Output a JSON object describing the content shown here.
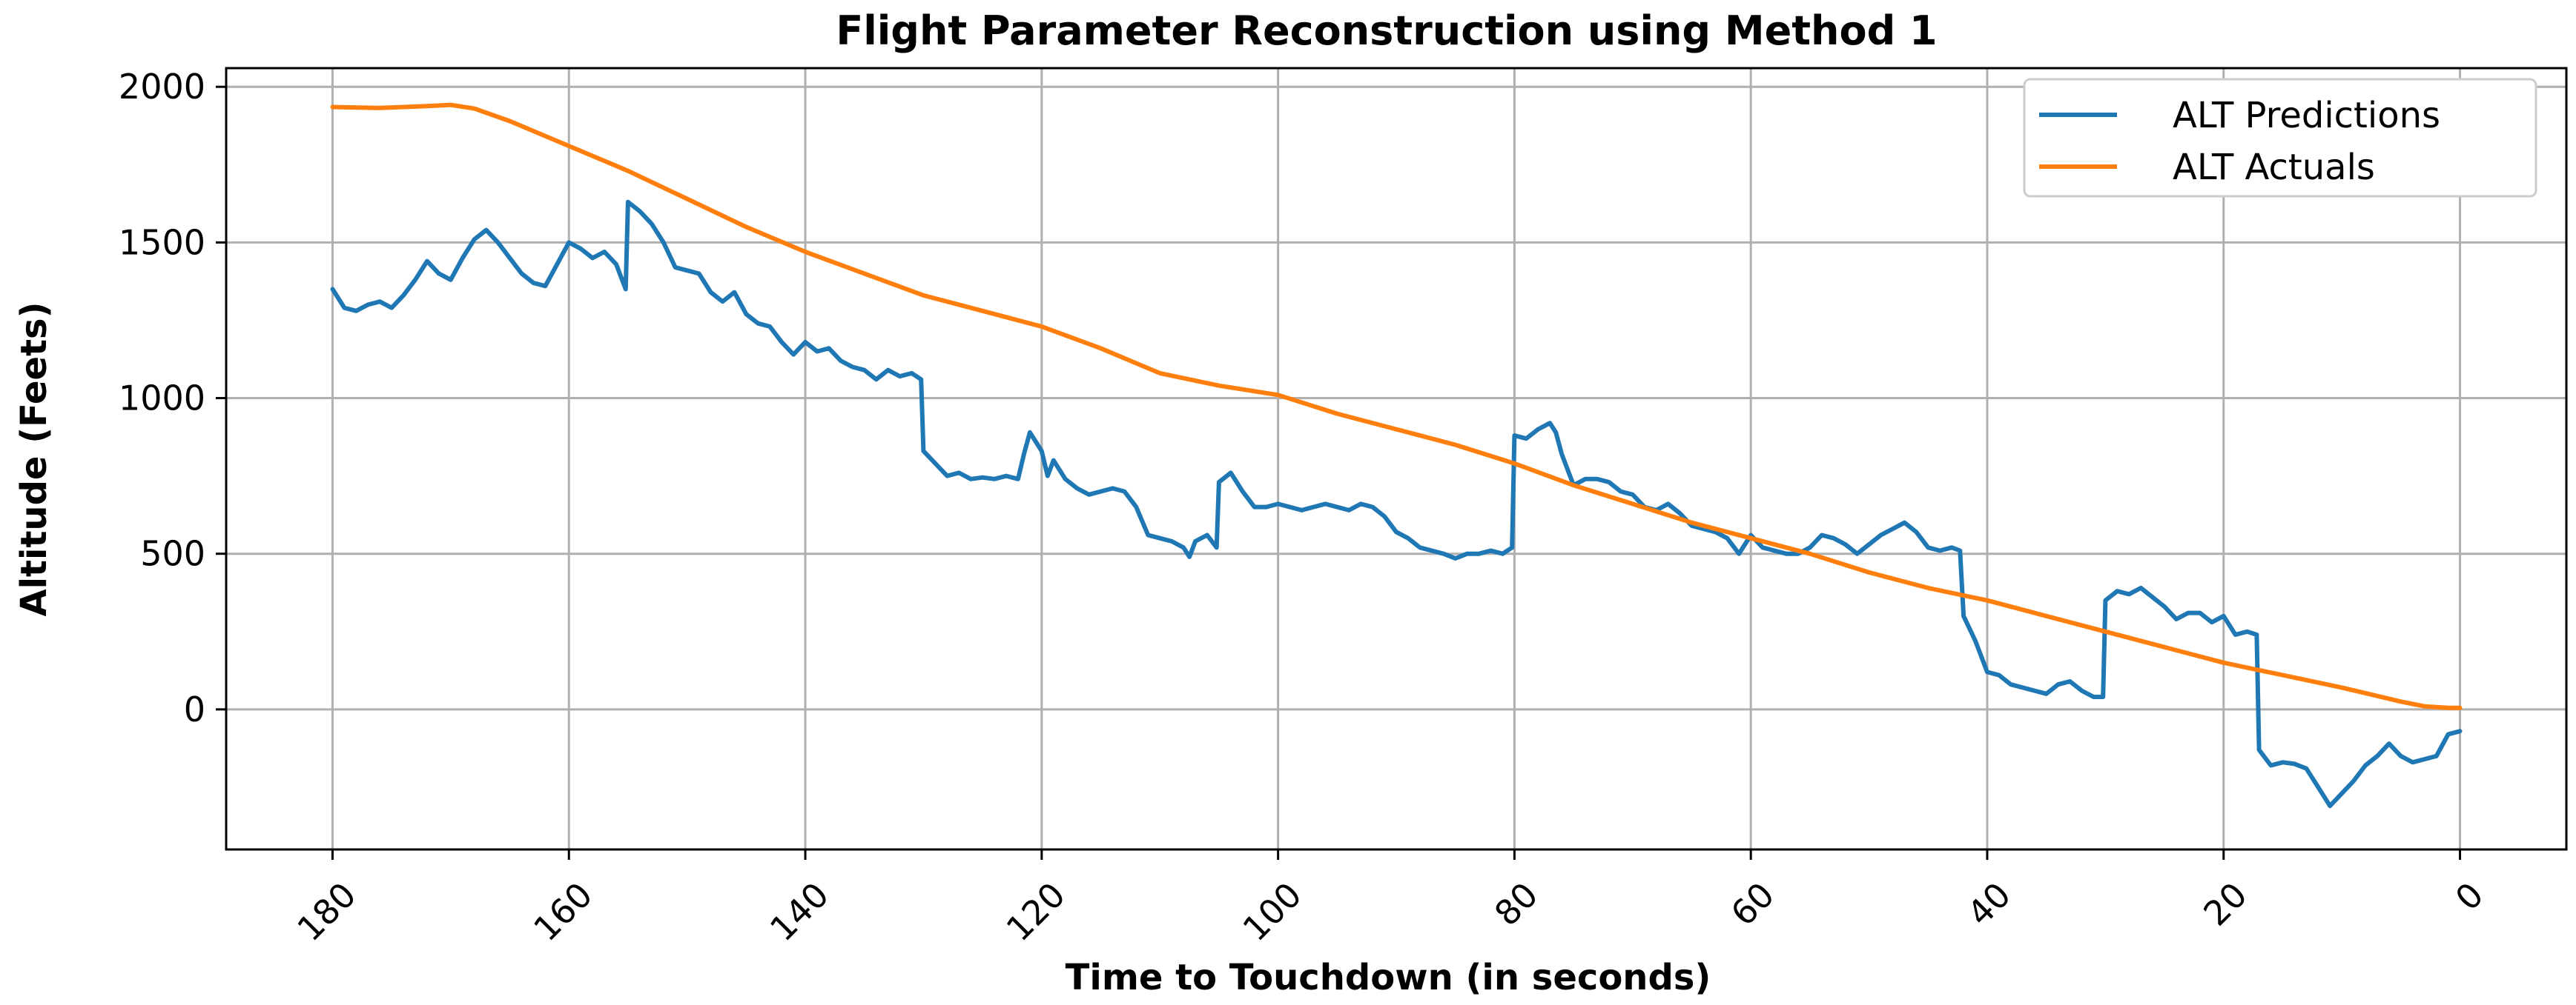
{
  "chart_data": {
    "type": "line",
    "title": "Flight Parameter Reconstruction using Method 1",
    "xlabel": "Time to Touchdown (in seconds)",
    "ylabel": "Altitude (Feets)",
    "xlim": [
      189,
      -9
    ],
    "ylim": [
      -450,
      2060
    ],
    "x_inverted": true,
    "xticks": [
      180,
      160,
      140,
      120,
      100,
      80,
      60,
      40,
      20,
      0
    ],
    "yticks": [
      2000,
      1500,
      1000,
      500,
      0
    ],
    "grid": true,
    "legend_position": "top-right",
    "series": [
      {
        "name": "ALT Predictions",
        "color": "#1f77b4",
        "points": [
          [
            180,
            1350
          ],
          [
            179,
            1290
          ],
          [
            178,
            1280
          ],
          [
            177,
            1300
          ],
          [
            176,
            1310
          ],
          [
            175,
            1290
          ],
          [
            174,
            1330
          ],
          [
            173,
            1380
          ],
          [
            172,
            1440
          ],
          [
            171,
            1400
          ],
          [
            170,
            1380
          ],
          [
            169,
            1450
          ],
          [
            168,
            1510
          ],
          [
            167,
            1540
          ],
          [
            166,
            1500
          ],
          [
            165,
            1450
          ],
          [
            164,
            1400
          ],
          [
            163,
            1370
          ],
          [
            162,
            1360
          ],
          [
            161,
            1430
          ],
          [
            160,
            1500
          ],
          [
            159,
            1480
          ],
          [
            158,
            1450
          ],
          [
            157,
            1470
          ],
          [
            156,
            1430
          ],
          [
            155.2,
            1350
          ],
          [
            155,
            1630
          ],
          [
            154,
            1600
          ],
          [
            153,
            1560
          ],
          [
            152,
            1500
          ],
          [
            151,
            1420
          ],
          [
            150,
            1410
          ],
          [
            149,
            1400
          ],
          [
            148,
            1340
          ],
          [
            147,
            1310
          ],
          [
            146,
            1340
          ],
          [
            145,
            1270
          ],
          [
            144,
            1240
          ],
          [
            143,
            1230
          ],
          [
            142,
            1180
          ],
          [
            141,
            1140
          ],
          [
            140,
            1180
          ],
          [
            139,
            1150
          ],
          [
            138,
            1160
          ],
          [
            137,
            1120
          ],
          [
            136,
            1100
          ],
          [
            135,
            1090
          ],
          [
            134,
            1060
          ],
          [
            133,
            1090
          ],
          [
            132,
            1070
          ],
          [
            131,
            1080
          ],
          [
            130.2,
            1060
          ],
          [
            130,
            830
          ],
          [
            129,
            790
          ],
          [
            128,
            750
          ],
          [
            127,
            760
          ],
          [
            126,
            740
          ],
          [
            125,
            745
          ],
          [
            124,
            740
          ],
          [
            123,
            750
          ],
          [
            122,
            740
          ],
          [
            121.5,
            820
          ],
          [
            121,
            890
          ],
          [
            120,
            830
          ],
          [
            119.5,
            750
          ],
          [
            119,
            800
          ],
          [
            118,
            740
          ],
          [
            117,
            710
          ],
          [
            116,
            690
          ],
          [
            115,
            700
          ],
          [
            114,
            710
          ],
          [
            113,
            700
          ],
          [
            112,
            650
          ],
          [
            111,
            560
          ],
          [
            110,
            550
          ],
          [
            109,
            540
          ],
          [
            108,
            520
          ],
          [
            107.5,
            490
          ],
          [
            107,
            540
          ],
          [
            106,
            560
          ],
          [
            105.2,
            520
          ],
          [
            105,
            730
          ],
          [
            104,
            760
          ],
          [
            103,
            700
          ],
          [
            102,
            650
          ],
          [
            101,
            650
          ],
          [
            100,
            660
          ],
          [
            99,
            650
          ],
          [
            98,
            640
          ],
          [
            97,
            650
          ],
          [
            96,
            660
          ],
          [
            95,
            650
          ],
          [
            94,
            640
          ],
          [
            93,
            660
          ],
          [
            92,
            650
          ],
          [
            91,
            620
          ],
          [
            90,
            570
          ],
          [
            89,
            550
          ],
          [
            88,
            520
          ],
          [
            87,
            510
          ],
          [
            86,
            500
          ],
          [
            85,
            485
          ],
          [
            84,
            500
          ],
          [
            83,
            500
          ],
          [
            82,
            510
          ],
          [
            81,
            500
          ],
          [
            80.2,
            520
          ],
          [
            80,
            880
          ],
          [
            79,
            870
          ],
          [
            78,
            900
          ],
          [
            77,
            920
          ],
          [
            76.5,
            890
          ],
          [
            76,
            820
          ],
          [
            75,
            720
          ],
          [
            74,
            740
          ],
          [
            73,
            740
          ],
          [
            72,
            730
          ],
          [
            71,
            700
          ],
          [
            70,
            690
          ],
          [
            69,
            650
          ],
          [
            68,
            640
          ],
          [
            67,
            660
          ],
          [
            66,
            630
          ],
          [
            65,
            590
          ],
          [
            64,
            580
          ],
          [
            63,
            570
          ],
          [
            62,
            550
          ],
          [
            61,
            500
          ],
          [
            60,
            560
          ],
          [
            59,
            520
          ],
          [
            58,
            510
          ],
          [
            57,
            500
          ],
          [
            56,
            500
          ],
          [
            55,
            520
          ],
          [
            54,
            560
          ],
          [
            53,
            550
          ],
          [
            52,
            530
          ],
          [
            51,
            500
          ],
          [
            50,
            530
          ],
          [
            49,
            560
          ],
          [
            48,
            580
          ],
          [
            47,
            600
          ],
          [
            46,
            570
          ],
          [
            45,
            520
          ],
          [
            44,
            510
          ],
          [
            43,
            520
          ],
          [
            42.3,
            510
          ],
          [
            42,
            300
          ],
          [
            41,
            220
          ],
          [
            40,
            120
          ],
          [
            39,
            110
          ],
          [
            38,
            80
          ],
          [
            37,
            70
          ],
          [
            36,
            60
          ],
          [
            35,
            50
          ],
          [
            34,
            80
          ],
          [
            33,
            90
          ],
          [
            32,
            60
          ],
          [
            31,
            40
          ],
          [
            30.2,
            40
          ],
          [
            30,
            350
          ],
          [
            29,
            380
          ],
          [
            28,
            370
          ],
          [
            27,
            390
          ],
          [
            26,
            360
          ],
          [
            25,
            330
          ],
          [
            24,
            290
          ],
          [
            23,
            310
          ],
          [
            22,
            310
          ],
          [
            21,
            280
          ],
          [
            20,
            300
          ],
          [
            19,
            240
          ],
          [
            18,
            250
          ],
          [
            17.2,
            240
          ],
          [
            17,
            -130
          ],
          [
            16,
            -180
          ],
          [
            15,
            -170
          ],
          [
            14,
            -175
          ],
          [
            13,
            -190
          ],
          [
            12,
            -250
          ],
          [
            11,
            -310
          ],
          [
            10,
            -270
          ],
          [
            9,
            -230
          ],
          [
            8,
            -180
          ],
          [
            7,
            -150
          ],
          [
            6,
            -110
          ],
          [
            5,
            -150
          ],
          [
            4,
            -170
          ],
          [
            3,
            -160
          ],
          [
            2,
            -150
          ],
          [
            1,
            -80
          ],
          [
            0,
            -70
          ]
        ]
      },
      {
        "name": "ALT Actuals",
        "color": "#ff7f0e",
        "points": [
          [
            180,
            1935
          ],
          [
            176,
            1932
          ],
          [
            172,
            1938
          ],
          [
            170,
            1942
          ],
          [
            168,
            1930
          ],
          [
            165,
            1890
          ],
          [
            160,
            1810
          ],
          [
            155,
            1730
          ],
          [
            150,
            1640
          ],
          [
            145,
            1550
          ],
          [
            140,
            1470
          ],
          [
            135,
            1400
          ],
          [
            130,
            1330
          ],
          [
            125,
            1280
          ],
          [
            120,
            1230
          ],
          [
            115,
            1160
          ],
          [
            110,
            1080
          ],
          [
            105,
            1040
          ],
          [
            100,
            1010
          ],
          [
            95,
            950
          ],
          [
            90,
            900
          ],
          [
            85,
            850
          ],
          [
            80,
            790
          ],
          [
            75,
            720
          ],
          [
            70,
            660
          ],
          [
            65,
            600
          ],
          [
            60,
            550
          ],
          [
            55,
            500
          ],
          [
            50,
            440
          ],
          [
            45,
            390
          ],
          [
            40,
            350
          ],
          [
            35,
            300
          ],
          [
            30,
            250
          ],
          [
            25,
            200
          ],
          [
            20,
            150
          ],
          [
            15,
            110
          ],
          [
            10,
            70
          ],
          [
            5,
            25
          ],
          [
            3,
            10
          ],
          [
            1,
            5
          ],
          [
            0,
            5
          ]
        ]
      }
    ]
  }
}
